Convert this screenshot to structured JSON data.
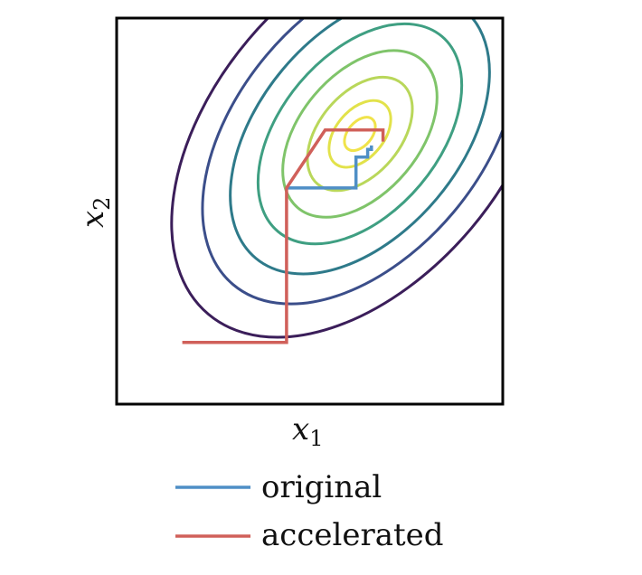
{
  "chart_data": {
    "type": "line",
    "xlabel": "x",
    "xlabel_sub": "1",
    "ylabel": "x",
    "ylabel_sub": "2",
    "xlim": [
      0,
      1
    ],
    "ylim": [
      0,
      1
    ],
    "grid": false,
    "legend_placement": "bottom",
    "contours": {
      "center": [
        0.63,
        0.7
      ],
      "rotation_deg": 40,
      "axis_ratio": 0.62,
      "levels": [
        0.1,
        0.2,
        0.34,
        0.5,
        0.66,
        0.84,
        1.02,
        1.22
      ],
      "colors": [
        "#f0e34a",
        "#e2e24a",
        "#b9d75a",
        "#7fc46a",
        "#3f9f82",
        "#2e7a8a",
        "#3b4e8a",
        "#3b1e5a"
      ]
    },
    "series": [
      {
        "name": "original",
        "color": "#4f8fc6",
        "x": [
          0.44,
          0.62,
          0.62,
          0.65,
          0.65,
          0.66,
          0.66
        ],
        "y": [
          0.56,
          0.56,
          0.64,
          0.64,
          0.66,
          0.66,
          0.67
        ]
      },
      {
        "name": "accelerated",
        "color": "#d0605a",
        "x": [
          0.17,
          0.44,
          0.44,
          0.54,
          0.69,
          0.69
        ],
        "y": [
          0.16,
          0.16,
          0.56,
          0.71,
          0.71,
          0.68
        ]
      }
    ]
  }
}
